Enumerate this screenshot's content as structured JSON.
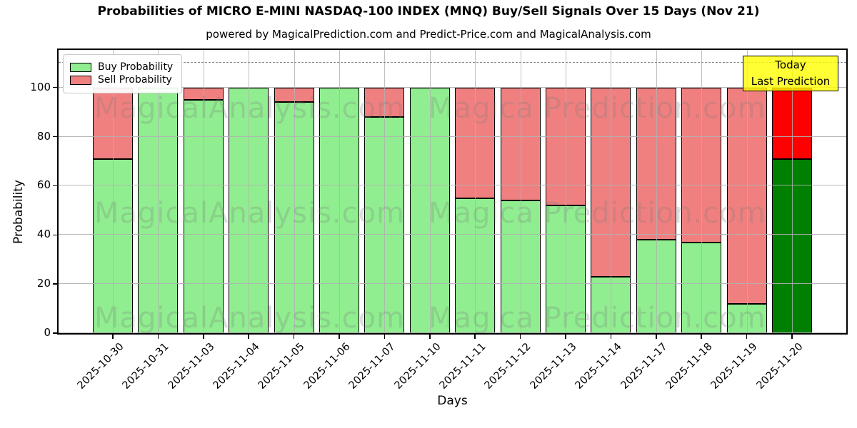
{
  "title": "Probabilities of MICRO E-MINI NASDAQ-100 INDEX (MNQ) Buy/Sell Signals Over 15 Days (Nov 21)",
  "subtitle": "powered by MagicalPrediction.com and Predict-Price.com and MagicalAnalysis.com",
  "legend": {
    "buy_label": "Buy Probability",
    "sell_label": "Sell Probability"
  },
  "axes": {
    "xlabel": "Days",
    "ylabel": "Probability",
    "yticks": [
      0,
      20,
      40,
      60,
      80,
      100
    ],
    "ymax": 115.3,
    "dashed_guide_y": 110,
    "grid": true
  },
  "annotation": {
    "line1": "Today",
    "line2": "Last Prediction"
  },
  "watermarks": [
    "MagicalAnalysis.com",
    "Magica Prediction.com"
  ],
  "colors": {
    "buy": "#90ee90",
    "sell": "#f08080",
    "today_buy": "#008000",
    "today_sell": "#ff0000",
    "bar_edge": "#000000",
    "grid": "#b0b0b0",
    "annotation_bg": "#ffff00",
    "annotation_border": "#000000",
    "watermark": "#787878"
  },
  "chart_data": {
    "type": "bar",
    "stacked": true,
    "title": "Probabilities of MICRO E-MINI NASDAQ-100 INDEX (MNQ) Buy/Sell Signals Over 15 Days (Nov 21)",
    "xlabel": "Days",
    "ylabel": "Probability",
    "ylim": [
      0,
      115.3
    ],
    "legend_position": "upper left",
    "categories": [
      "2025-10-30",
      "2025-10-31",
      "2025-11-03",
      "2025-11-04",
      "2025-11-05",
      "2025-11-06",
      "2025-11-07",
      "2025-11-10",
      "2025-11-11",
      "2025-11-12",
      "2025-11-13",
      "2025-11-14",
      "2025-11-17",
      "2025-11-18",
      "2025-11-19",
      "2025-11-20"
    ],
    "series": [
      {
        "name": "Buy Probability",
        "values": [
          71,
          100,
          95,
          100,
          94,
          100,
          88,
          100,
          55,
          54,
          52,
          23,
          38,
          37,
          12,
          71
        ]
      },
      {
        "name": "Sell Probability",
        "values": [
          29,
          0,
          5,
          0,
          6,
          0,
          12,
          0,
          45,
          46,
          48,
          77,
          62,
          63,
          88,
          29
        ]
      }
    ],
    "today_index": 15,
    "today_note": "Last bar (2025-11-20) drawn in saturated green/red and labeled Today / Last Prediction"
  }
}
